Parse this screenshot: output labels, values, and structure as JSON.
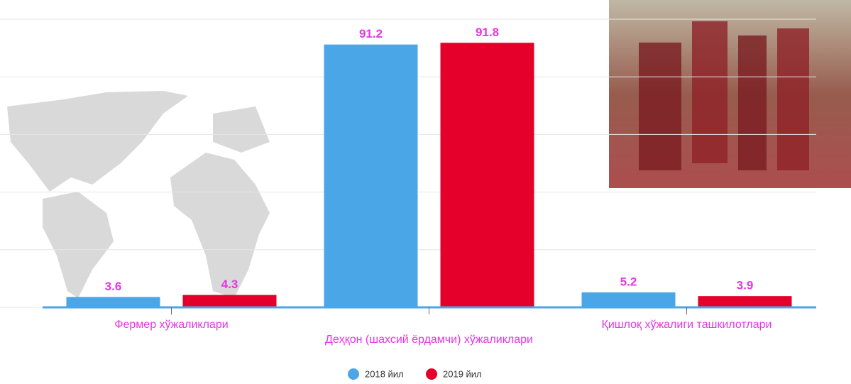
{
  "chart_data": {
    "type": "bar",
    "categories": [
      "Фермер хўжаликлари",
      "Деҳқон (шахсий ёрдамчи) хўжаликлари",
      "Қишлоқ хўжалиги ташкилотлари"
    ],
    "series": [
      {
        "name": "2018 йил",
        "color": "#4aa6e6",
        "values": [
          3.6,
          91.2,
          5.2
        ]
      },
      {
        "name": "2019 йил",
        "color": "#e4002b",
        "values": [
          4.3,
          91.8,
          3.9
        ]
      }
    ],
    "ylim": [
      0,
      100
    ],
    "yticks": [
      0,
      20,
      40,
      60,
      80,
      100
    ],
    "grid": true,
    "legend": "bottom"
  }
}
